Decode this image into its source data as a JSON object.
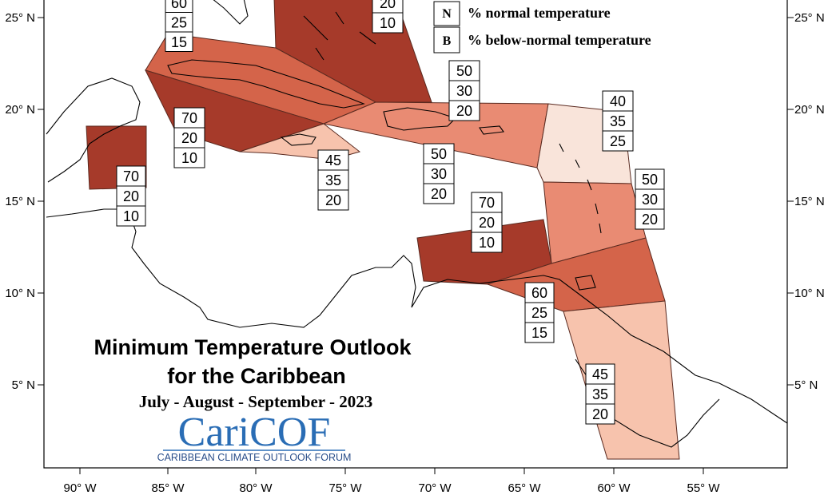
{
  "map": {
    "longitude_ticks": [
      "90° W",
      "85° W",
      "80° W",
      "75° W",
      "70° W",
      "65° W",
      "60° W",
      "55° W"
    ],
    "latitude_ticks": [
      "25° N",
      "20° N",
      "15° N",
      "10° N",
      "5° N"
    ]
  },
  "legend": {
    "items": [
      {
        "letter": "N",
        "text": "% normal temperature"
      },
      {
        "letter": "B",
        "text": "% below-normal temperature"
      }
    ]
  },
  "title": {
    "line1": "Minimum Temperature Outlook",
    "line2": "for the Caribbean",
    "period": "July - August - September - 2023"
  },
  "logo": {
    "name": "CariCOF",
    "subtitle": "CARIBBEAN CLIMATE OUTLOOK FORUM"
  },
  "colors": {
    "above_70": "#a63a2a",
    "above_60": "#d4644a",
    "above_50": "#e98b73",
    "above_45": "#f7c3ad",
    "above_40": "#f9e4da"
  },
  "forecast_boxes": [
    {
      "zone": "northwest-cuba",
      "values": [
        "60",
        "25",
        "15"
      ]
    },
    {
      "zone": "bahamas",
      "values": [
        "20",
        "10"
      ]
    },
    {
      "zone": "hispaniola-north",
      "values": [
        "50",
        "30",
        "20"
      ]
    },
    {
      "zone": "leeward-islands",
      "values": [
        "40",
        "35",
        "25"
      ]
    },
    {
      "zone": "central-cuba",
      "values": [
        "70",
        "20",
        "10"
      ]
    },
    {
      "zone": "belize",
      "values": [
        "70",
        "20",
        "10"
      ]
    },
    {
      "zone": "jamaica",
      "values": [
        "45",
        "35",
        "20"
      ]
    },
    {
      "zone": "puerto-rico",
      "values": [
        "50",
        "30",
        "20"
      ]
    },
    {
      "zone": "windward-islands",
      "values": [
        "50",
        "30",
        "20"
      ]
    },
    {
      "zone": "abc-islands",
      "values": [
        "70",
        "20",
        "10"
      ]
    },
    {
      "zone": "trinidad",
      "values": [
        "60",
        "25",
        "15"
      ]
    },
    {
      "zone": "guianas",
      "values": [
        "45",
        "35",
        "20"
      ]
    }
  ]
}
